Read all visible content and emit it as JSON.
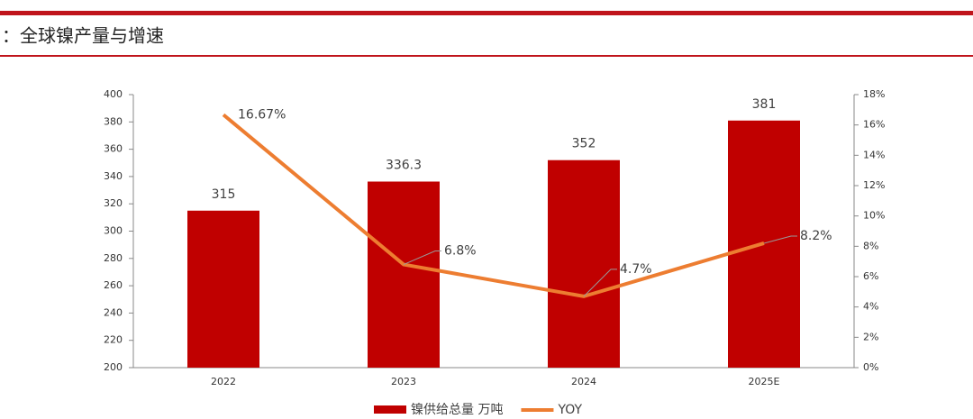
{
  "title": "：全球镍产量与增速",
  "chart_data": {
    "type": "bar-line",
    "categories": [
      "2022",
      "2023",
      "2024",
      "2025E"
    ],
    "series": [
      {
        "name": "镍供给总量 万吨",
        "type": "bar",
        "color": "#c00000",
        "values": [
          315,
          336.3,
          352,
          381
        ]
      },
      {
        "name": "YOY",
        "type": "line",
        "axis": "y2",
        "color": "#ed7d31",
        "values": [
          16.67,
          6.8,
          4.7,
          8.2
        ],
        "value_labels": [
          "16.67%",
          "6.8%",
          "4.7%",
          "8.2%"
        ]
      }
    ],
    "ylim": [
      200,
      400
    ],
    "yticks": [
      200,
      220,
      240,
      260,
      280,
      300,
      320,
      340,
      360,
      380,
      400
    ],
    "y2lim": [
      0,
      18
    ],
    "y2ticks": [
      {
        "value": 0,
        "label": "0%"
      },
      {
        "value": 2,
        "label": "2%"
      },
      {
        "value": 4,
        "label": "4%"
      },
      {
        "value": 6,
        "label": "6%"
      },
      {
        "value": 8,
        "label": "8%"
      },
      {
        "value": 10,
        "label": "10%"
      },
      {
        "value": 12,
        "label": "12%"
      },
      {
        "value": 14,
        "label": "14%"
      },
      {
        "value": 16,
        "label": "16%"
      },
      {
        "value": 18,
        "label": "18%"
      }
    ],
    "grid": false
  }
}
